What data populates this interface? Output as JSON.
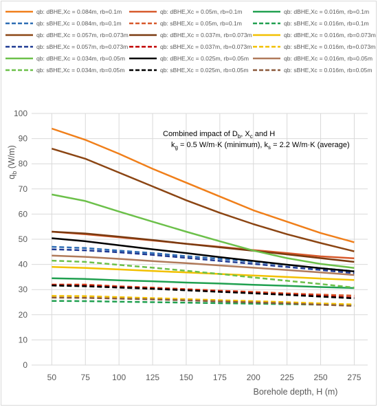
{
  "chart_data": {
    "type": "line",
    "xlabel": "Borehole depth, H (m)",
    "ylabel": "q",
    "ylabel_sub": "b",
    "ylabel_unit": " (W/m)",
    "xlim": [
      35,
      285
    ],
    "ylim": [
      0,
      100
    ],
    "x_ticks": [
      50,
      75,
      100,
      125,
      150,
      175,
      200,
      225,
      250,
      275
    ],
    "y_ticks": [
      0,
      10,
      20,
      30,
      40,
      50,
      60,
      70,
      80,
      90,
      100
    ],
    "grid": true,
    "legend_position": "top",
    "annotation": {
      "line1_prefix": "Combined impact of D",
      "line1_d_sub": "b",
      "line1_mid": ", X",
      "line1_x_sub": "c",
      "line1_suffix": "  and H",
      "line2_kg": "k",
      "line2_kg_sub": "g",
      "line2_kg_val": " = 0.5 W/m·K (minimum), k",
      "line2_ks_sub": "s",
      "line2_ks_val": " = 2.2 W/m·K (average)"
    },
    "x": [
      50,
      75,
      100,
      125,
      150,
      175,
      200,
      225,
      250,
      275
    ],
    "series": [
      {
        "name": "qb: dBHE,Xc = 0.084m, rb=0.1m",
        "color": "#f07f1a",
        "dash": false,
        "values": [
          94,
          89.5,
          84,
          78,
          72.5,
          67,
          61.5,
          57,
          52.5,
          48.8
        ]
      },
      {
        "name": "qb: dBHE,Xc = 0.05m, rb=0.1m",
        "color": "#d7592b",
        "dash": false,
        "values": [
          53,
          52,
          50.8,
          49.5,
          48.2,
          47,
          45.7,
          44.5,
          43.2,
          42.4
        ]
      },
      {
        "name": "qb: dBHE,Xc = 0.016m, rb=0.1m",
        "color": "#20a050",
        "dash": false,
        "values": [
          34.5,
          34.2,
          33.7,
          33.3,
          32.8,
          32.4,
          31.9,
          31.5,
          31.0,
          30.6
        ]
      },
      {
        "name": "qb: sBHE,Xc = 0.084m, rb=0.1m",
        "color": "#2e6db4",
        "dash": true,
        "values": [
          47,
          46.5,
          45.5,
          44.5,
          43.3,
          42.2,
          41,
          39.8,
          38.5,
          37.3
        ]
      },
      {
        "name": "qb: sBHE,Xc = 0.05m, rb=0.1m",
        "color": "#d7592b",
        "dash": true,
        "values": [
          32,
          32,
          31.3,
          30.8,
          30.2,
          29.6,
          29.1,
          28.5,
          28.0,
          27.6
        ]
      },
      {
        "name": "qb: sBHE,Xc = 0.016m, rb=0.1m",
        "color": "#20a050",
        "dash": true,
        "values": [
          25.5,
          25.4,
          25.2,
          25.0,
          24.8,
          24.6,
          24.4,
          24.2,
          24.0,
          23.8
        ]
      },
      {
        "name": "qb: dBHE,Xc = 0.057m, rb=0.073m",
        "color": "#8b4513",
        "dash": false,
        "values": [
          86,
          82,
          76.5,
          71,
          65.5,
          60.5,
          56,
          52,
          48.5,
          45.2
        ]
      },
      {
        "name": "qb: dBHE,Xc = 0.037m, rb=0.073m",
        "color": "#7a3a10",
        "dash": false,
        "values": [
          53,
          52.3,
          51,
          49.7,
          48.2,
          46.8,
          45.4,
          44,
          42.5,
          41
        ]
      },
      {
        "name": "qb: dBHE,Xc = 0.016m, rb=0.073m",
        "color": "#f2c000",
        "dash": false,
        "values": [
          39,
          38.6,
          38,
          37.4,
          36.8,
          36.2,
          35.6,
          35,
          34.4,
          33.8
        ]
      },
      {
        "name": "qb: sBHE,Xc = 0.057m, rb=0.073m",
        "color": "#1f3a93",
        "dash": true,
        "values": [
          46,
          45.6,
          44.8,
          43.8,
          42.6,
          41.4,
          40.2,
          39,
          37.8,
          36.5
        ]
      },
      {
        "name": "qb: sBHE,Xc = 0.037m, rb=0.073m",
        "color": "#c00000",
        "dash": true,
        "values": [
          31.8,
          31.6,
          31,
          30.5,
          29.9,
          29.3,
          28.7,
          28.1,
          27.5,
          26.8
        ]
      },
      {
        "name": "qb: sBHE,Xc = 0.016m, rb=0.073m",
        "color": "#f2c000",
        "dash": true,
        "values": [
          27.5,
          27.4,
          27,
          26.6,
          26.2,
          25.8,
          25.4,
          25,
          24.5,
          24.1
        ]
      },
      {
        "name": "qb: dBHE,Xc = 0.034m, rb=0.05m",
        "color": "#6cc04a",
        "dash": false,
        "values": [
          67.8,
          65.2,
          61,
          57,
          53,
          49.2,
          45.5,
          42.5,
          40.2,
          38.6
        ]
      },
      {
        "name": "qb: dBHE,Xc = 0.025m, rb=0.05m",
        "color": "#000000",
        "dash": false,
        "values": [
          50.4,
          49.2,
          47.6,
          46,
          44.5,
          42.9,
          41.4,
          39.9,
          38.5,
          37.2
        ]
      },
      {
        "name": "qb: dBHE,Xc = 0.016m, rb=0.05m",
        "color": "#b07a5a",
        "dash": false,
        "values": [
          43.5,
          43,
          42.2,
          41.3,
          40.5,
          39.6,
          38.7,
          37.8,
          36.8,
          35.8
        ]
      },
      {
        "name": "qb: sBHE,Xc = 0.034m, rb=0.05m",
        "color": "#6cc04a",
        "dash": true,
        "values": [
          41.5,
          41,
          39.8,
          38.7,
          37.5,
          36.2,
          34.8,
          33.5,
          32.2,
          30.8
        ]
      },
      {
        "name": "qb: sBHE,Xc = 0.025m, rb=0.05m",
        "color": "#000000",
        "dash": true,
        "values": [
          31.6,
          31.3,
          30.8,
          30.3,
          29.7,
          29.1,
          28.5,
          27.9,
          27.2,
          26.5
        ]
      },
      {
        "name": "qb: sBHE,Xc = 0.016m, rb=0.05m",
        "color": "#8b5a3c",
        "dash": true,
        "values": [
          26.8,
          26.7,
          26.4,
          26.1,
          25.7,
          25.3,
          24.9,
          24.5,
          24.0,
          23.5
        ]
      }
    ]
  }
}
